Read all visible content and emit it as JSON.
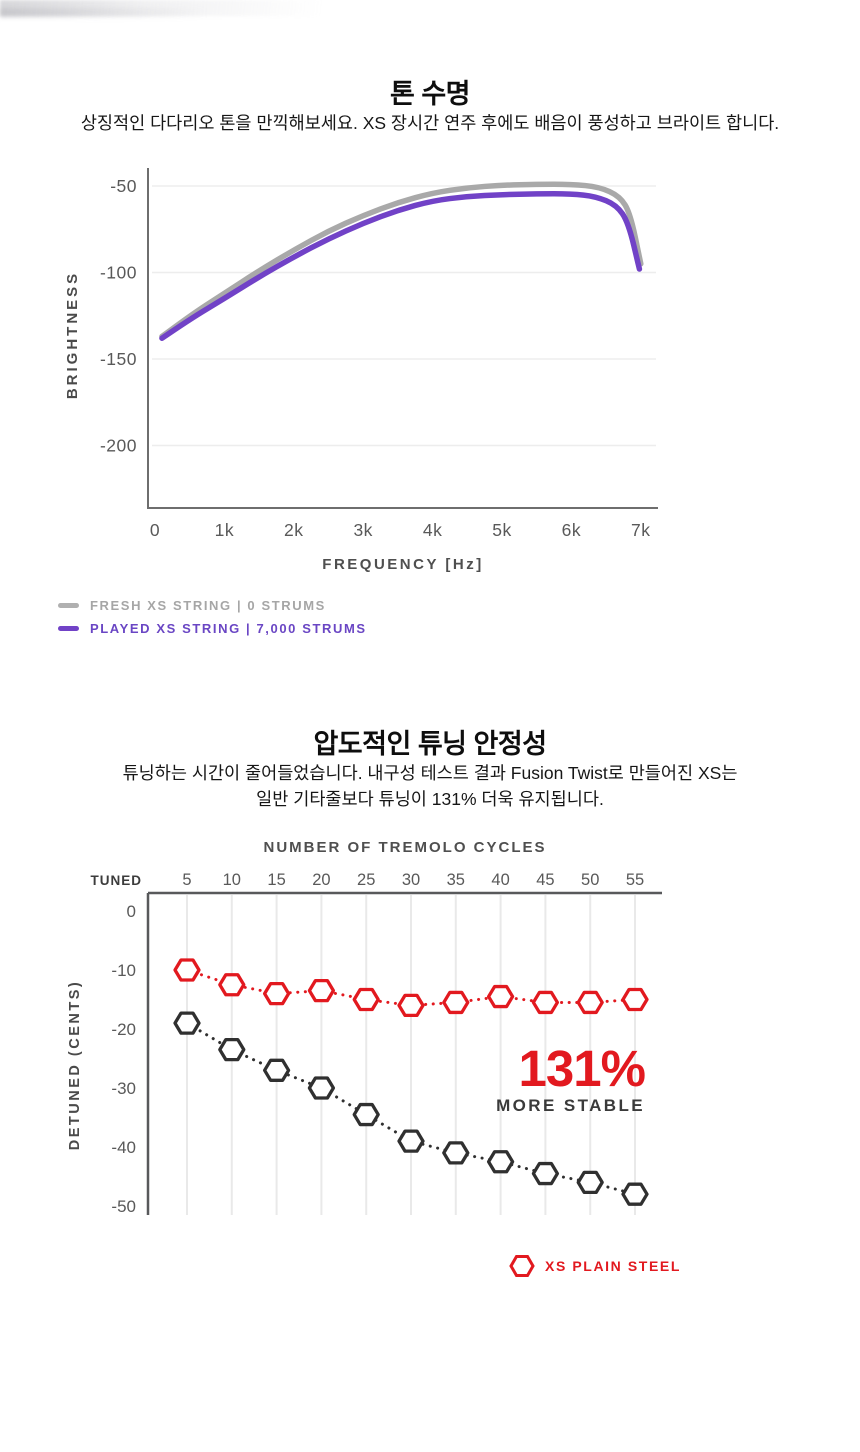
{
  "colors": {
    "red": "#e2191f",
    "purple": "#7142c7",
    "gray_line": "#a9a9a9",
    "gray_legend_text": "#a6a6a6",
    "dark_series": "#303030",
    "axis": "#6e6e6e",
    "grid": "#ededed",
    "tick_text": "#595959"
  },
  "section_tone": {
    "title": "톤 수명",
    "subtitle": "상징적인 다다리오 톤을 만끽해보세요. XS 장시간 연주 후에도 배음이 풍성하고 브라이트 합니다.",
    "ylabel": "BRIGHTNESS",
    "xlabel": "FREQUENCY [Hz]",
    "legend": [
      {
        "label": "FRESH XS STRING | 0 STRUMS",
        "color": "#a6a6a6",
        "swatch": "#b0b0b0"
      },
      {
        "label": "PLAYED XS STRING | 7,000 STRUMS",
        "color": "#6a46c4",
        "swatch": "#7142c7"
      }
    ]
  },
  "section_tuning": {
    "title": "압도적인 튜닝 안정성",
    "subtitle_line1": "튜닝하는 시간이 줄어들었습니다. 내구성 테스트 결과 Fusion Twist로 만들어진 XS는",
    "subtitle_line2": "일반 기타줄보다 튜닝이 131% 더욱 유지됩니다.",
    "xlabel": "NUMBER OF TREMOLO CYCLES",
    "ylabel": "DETUNED (CENTS)",
    "origin_label": "TUNED",
    "annotation": {
      "value": "131%",
      "caption": "MORE STABLE"
    },
    "legend": [
      {
        "label": "XS PLAIN STEEL",
        "color": "#e2191f"
      }
    ]
  },
  "chart_data": [
    {
      "type": "line",
      "title": "톤 수명",
      "xlabel": "FREQUENCY [Hz]",
      "ylabel": "BRIGHTNESS",
      "x_ticks": [
        "0",
        "1k",
        "2k",
        "3k",
        "4k",
        "5k",
        "6k",
        "7k"
      ],
      "y_ticks": [
        -50,
        -100,
        -150,
        -200
      ],
      "xlim_khz": [
        0,
        7.3
      ],
      "ylim": [
        -236,
        -20
      ],
      "grid": "horizontal",
      "legend_position": "bottom-left",
      "series": [
        {
          "name": "FRESH XS STRING | 0 STRUMS",
          "color": "#a9a9a9",
          "points": [
            [
              0.1,
              -137
            ],
            [
              0.5,
              -125
            ],
            [
              1,
              -112
            ],
            [
              1.5,
              -99
            ],
            [
              2,
              -87
            ],
            [
              2.5,
              -76
            ],
            [
              3,
              -67
            ],
            [
              3.5,
              -59.5
            ],
            [
              4,
              -54
            ],
            [
              4.5,
              -51
            ],
            [
              5,
              -49.5
            ],
            [
              5.5,
              -49
            ],
            [
              6,
              -49
            ],
            [
              6.4,
              -50.5
            ],
            [
              6.7,
              -56
            ],
            [
              6.85,
              -66
            ],
            [
              7.0,
              -95
            ]
          ]
        },
        {
          "name": "PLAYED XS STRING | 7,000 STRUMS",
          "color": "#7142c7",
          "points": [
            [
              0.1,
              -138
            ],
            [
              0.5,
              -127
            ],
            [
              1,
              -115
            ],
            [
              1.5,
              -102.5
            ],
            [
              2,
              -91
            ],
            [
              2.5,
              -80.5
            ],
            [
              3,
              -71.5
            ],
            [
              3.5,
              -64
            ],
            [
              4,
              -58.5
            ],
            [
              4.5,
              -56
            ],
            [
              5,
              -55
            ],
            [
              5.5,
              -54.5
            ],
            [
              6,
              -54.5
            ],
            [
              6.35,
              -56
            ],
            [
              6.65,
              -61
            ],
            [
              6.82,
              -71
            ],
            [
              6.98,
              -98
            ]
          ]
        }
      ]
    },
    {
      "type": "scatter",
      "title": "압도적인 튜닝 안정성",
      "xlabel": "NUMBER OF TREMOLO CYCLES",
      "ylabel": "DETUNED (CENTS)",
      "marker": "hexagon",
      "line_style": "dotted",
      "categories": [
        5,
        10,
        15,
        20,
        25,
        30,
        35,
        40,
        45,
        50,
        55
      ],
      "y_ticks": [
        0,
        -10,
        -20,
        -30,
        -40,
        -50
      ],
      "ylim": [
        -52,
        3
      ],
      "grid": "vertical",
      "annotation": "131% MORE STABLE",
      "series": [
        {
          "name": "XS PLAIN STEEL",
          "color": "#e2191f",
          "values": [
            -10,
            -12.5,
            -14,
            -13.5,
            -15,
            -16,
            -15.5,
            -14.5,
            -15.5,
            -15.5,
            -15
          ]
        },
        {
          "name": "",
          "color": "#303030",
          "values": [
            -19,
            -23.5,
            -27,
            -30,
            -34.5,
            -39,
            -41,
            -42.5,
            -44.5,
            -46,
            -48
          ]
        }
      ]
    }
  ]
}
